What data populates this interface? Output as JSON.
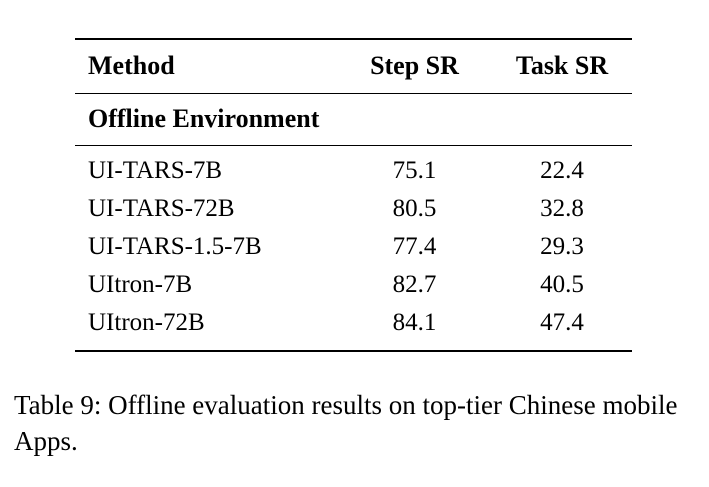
{
  "table": {
    "columns": {
      "method": "Method",
      "step_sr": "Step SR",
      "task_sr": "Task SR"
    },
    "section": "Offline Environment",
    "rows": [
      {
        "method": "UI-TARS-7B",
        "step_sr": "75.1",
        "task_sr": "22.4"
      },
      {
        "method": "UI-TARS-72B",
        "step_sr": "80.5",
        "task_sr": "32.8"
      },
      {
        "method": "UI-TARS-1.5-7B",
        "step_sr": "77.4",
        "task_sr": "29.3"
      },
      {
        "method": "UItron-7B",
        "step_sr": "82.7",
        "task_sr": "40.5"
      },
      {
        "method": "UItron-72B",
        "step_sr": "84.1",
        "task_sr": "47.4"
      }
    ]
  },
  "caption": "Table 9:  Offline evaluation results on top-tier Chinese mobile Apps."
}
